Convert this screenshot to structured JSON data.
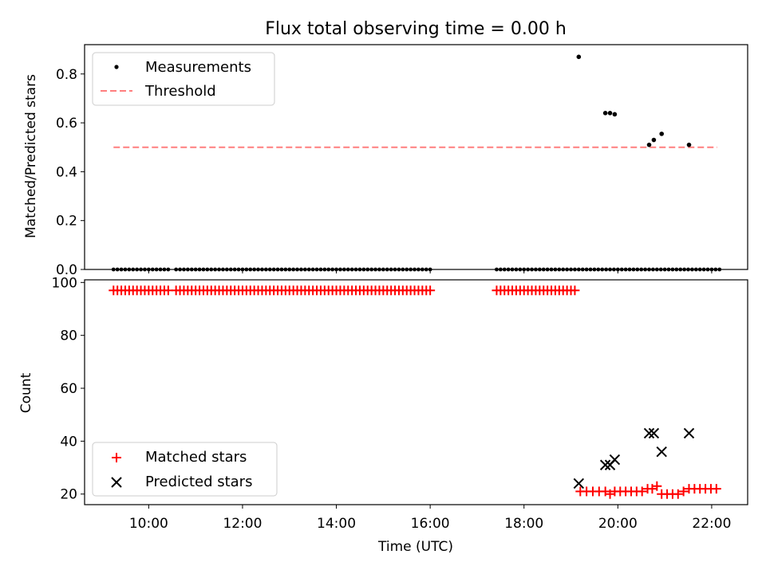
{
  "figure": {
    "title": "Flux total observing time = 0.00 h",
    "xlabel": "Time (UTC)"
  },
  "chart_data": [
    {
      "type": "scatter",
      "panel": "top",
      "ylabel": "Matched/Predicted stars",
      "xlim": [
        "08:38",
        "22:46"
      ],
      "ylim": [
        0,
        0.92
      ],
      "yticks": [
        "0.0",
        "0.2",
        "0.4",
        "0.6",
        "0.8"
      ],
      "ytick_values": [
        0,
        0.2,
        0.4,
        0.6,
        0.8
      ],
      "legend": {
        "placement": "upper left"
      },
      "series": [
        {
          "name": "Measurements",
          "marker": "dot",
          "color": "#000000",
          "zero_time_ranges": [
            [
              "09:15",
              "10:25"
            ],
            [
              "10:35",
              "16:00"
            ],
            [
              "17:25",
              "21:50"
            ],
            [
              "21:55",
              "22:10"
            ]
          ],
          "points": [
            {
              "x": "19:10",
              "y": 0.87
            },
            {
              "x": "19:44",
              "y": 0.64
            },
            {
              "x": "19:50",
              "y": 0.64
            },
            {
              "x": "19:56",
              "y": 0.635
            },
            {
              "x": "20:40",
              "y": 0.51
            },
            {
              "x": "20:46",
              "y": 0.53
            },
            {
              "x": "20:56",
              "y": 0.555
            },
            {
              "x": "21:31",
              "y": 0.51
            }
          ]
        },
        {
          "name": "Threshold",
          "style": "dashed",
          "color": "#ff7f7f",
          "x": [
            "09:15",
            "22:07"
          ],
          "y": [
            0.5,
            0.5
          ]
        }
      ]
    },
    {
      "type": "scatter",
      "panel": "bottom",
      "ylabel": "Count",
      "xlim": [
        "08:38",
        "22:46"
      ],
      "ylim": [
        16,
        101
      ],
      "yticks": [
        "20",
        "40",
        "60",
        "80",
        "100"
      ],
      "ytick_values": [
        20,
        40,
        60,
        80,
        100
      ],
      "xticks": [
        "10:00",
        "12:00",
        "14:00",
        "16:00",
        "18:00",
        "20:00",
        "22:00"
      ],
      "legend": {
        "placement": "lower left"
      },
      "series": [
        {
          "name": "Matched stars",
          "marker": "plus",
          "color": "#ff0000",
          "constant_runs": [
            {
              "from": "09:15",
              "to": "10:25",
              "y": 97
            },
            {
              "from": "10:35",
              "to": "16:00",
              "y": 97
            },
            {
              "from": "17:25",
              "to": "19:08",
              "y": 97
            }
          ],
          "points": [
            {
              "x": "19:12",
              "y": 21
            },
            {
              "x": "19:20",
              "y": 21
            },
            {
              "x": "19:28",
              "y": 21
            },
            {
              "x": "19:36",
              "y": 21
            },
            {
              "x": "19:44",
              "y": 21
            },
            {
              "x": "19:50",
              "y": 20
            },
            {
              "x": "19:56",
              "y": 21
            },
            {
              "x": "20:03",
              "y": 21
            },
            {
              "x": "20:10",
              "y": 21
            },
            {
              "x": "20:17",
              "y": 21
            },
            {
              "x": "20:24",
              "y": 21
            },
            {
              "x": "20:31",
              "y": 21
            },
            {
              "x": "20:38",
              "y": 22
            },
            {
              "x": "20:44",
              "y": 22
            },
            {
              "x": "20:50",
              "y": 23
            },
            {
              "x": "20:56",
              "y": 20
            },
            {
              "x": "21:03",
              "y": 20
            },
            {
              "x": "21:10",
              "y": 20
            },
            {
              "x": "21:17",
              "y": 20
            },
            {
              "x": "21:24",
              "y": 21
            },
            {
              "x": "21:31",
              "y": 22
            },
            {
              "x": "21:38",
              "y": 22
            },
            {
              "x": "21:45",
              "y": 22
            },
            {
              "x": "21:52",
              "y": 22
            },
            {
              "x": "21:59",
              "y": 22
            },
            {
              "x": "22:06",
              "y": 22
            }
          ]
        },
        {
          "name": "Predicted stars",
          "marker": "x",
          "color": "#000000",
          "points": [
            {
              "x": "19:10",
              "y": 24
            },
            {
              "x": "19:44",
              "y": 31
            },
            {
              "x": "19:50",
              "y": 31
            },
            {
              "x": "19:56",
              "y": 33
            },
            {
              "x": "20:40",
              "y": 43
            },
            {
              "x": "20:46",
              "y": 43
            },
            {
              "x": "20:56",
              "y": 36
            },
            {
              "x": "21:31",
              "y": 43
            }
          ]
        }
      ]
    }
  ]
}
